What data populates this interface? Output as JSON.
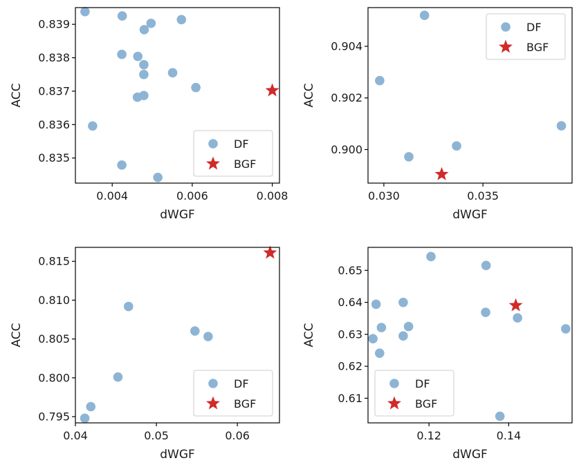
{
  "colors": {
    "df": "#8db4d4",
    "bgf": "#d02a2a"
  },
  "chart_data": [
    {
      "type": "scatter",
      "xlabel": "dWGF",
      "ylabel": "ACC",
      "xlim": [
        0.00308,
        0.00818
      ],
      "ylim": [
        0.83425,
        0.8395
      ],
      "xticks": [
        {
          "v": 0.004,
          "label": "0.004"
        },
        {
          "v": 0.006,
          "label": "0.006"
        },
        {
          "v": 0.008,
          "label": "0.008"
        }
      ],
      "yticks": [
        {
          "v": 0.835,
          "label": "0.835"
        },
        {
          "v": 0.836,
          "label": "0.836"
        },
        {
          "v": 0.837,
          "label": "0.837"
        },
        {
          "v": 0.838,
          "label": "0.838"
        },
        {
          "v": 0.839,
          "label": "0.839"
        }
      ],
      "legend_position": "lower-right",
      "series": [
        {
          "name": "DF",
          "marker": "circle",
          "points": [
            {
              "x": 0.00332,
              "y": 0.83938
            },
            {
              "x": 0.00425,
              "y": 0.83925
            },
            {
              "x": 0.00573,
              "y": 0.83914
            },
            {
              "x": 0.00497,
              "y": 0.83903
            },
            {
              "x": 0.0048,
              "y": 0.83884
            },
            {
              "x": 0.00424,
              "y": 0.8381
            },
            {
              "x": 0.00464,
              "y": 0.83804
            },
            {
              "x": 0.00479,
              "y": 0.83779
            },
            {
              "x": 0.00551,
              "y": 0.83755
            },
            {
              "x": 0.00479,
              "y": 0.8375
            },
            {
              "x": 0.00609,
              "y": 0.83711
            },
            {
              "x": 0.00479,
              "y": 0.83687
            },
            {
              "x": 0.00463,
              "y": 0.83682
            },
            {
              "x": 0.00351,
              "y": 0.83596
            },
            {
              "x": 0.00424,
              "y": 0.83479
            },
            {
              "x": 0.00514,
              "y": 0.83442
            }
          ]
        },
        {
          "name": "BGF",
          "marker": "star",
          "points": [
            {
              "x": 0.008,
              "y": 0.83702
            }
          ]
        }
      ]
    },
    {
      "type": "scatter",
      "xlabel": "dWGF",
      "ylabel": "ACC",
      "xlim": [
        0.0292,
        0.0395
      ],
      "ylim": [
        0.8987,
        0.9055
      ],
      "xticks": [
        {
          "v": 0.03,
          "label": "0.030"
        },
        {
          "v": 0.035,
          "label": "0.035"
        }
      ],
      "yticks": [
        {
          "v": 0.9,
          "label": "0.900"
        },
        {
          "v": 0.902,
          "label": "0.902"
        },
        {
          "v": 0.904,
          "label": "0.904"
        }
      ],
      "legend_position": "upper-right",
      "series": [
        {
          "name": "DF",
          "marker": "circle",
          "points": [
            {
              "x": 0.03205,
              "y": 0.9052
            },
            {
              "x": 0.02979,
              "y": 0.90267
            },
            {
              "x": 0.03896,
              "y": 0.90092
            },
            {
              "x": 0.03367,
              "y": 0.90014
            },
            {
              "x": 0.03126,
              "y": 0.89972
            }
          ]
        },
        {
          "name": "BGF",
          "marker": "star",
          "points": [
            {
              "x": 0.03292,
              "y": 0.89904
            }
          ]
        }
      ]
    },
    {
      "type": "scatter",
      "xlabel": "dWGF",
      "ylabel": "ACC",
      "xlim": [
        0.04,
        0.0652
      ],
      "ylim": [
        0.7942,
        0.8168
      ],
      "xticks": [
        {
          "v": 0.04,
          "label": "0.04"
        },
        {
          "v": 0.05,
          "label": "0.05"
        },
        {
          "v": 0.06,
          "label": "0.06"
        }
      ],
      "yticks": [
        {
          "v": 0.795,
          "label": "0.795"
        },
        {
          "v": 0.8,
          "label": "0.800"
        },
        {
          "v": 0.805,
          "label": "0.805"
        },
        {
          "v": 0.81,
          "label": "0.810"
        },
        {
          "v": 0.815,
          "label": "0.815"
        }
      ],
      "legend_position": "lower-right",
      "series": [
        {
          "name": "DF",
          "marker": "circle",
          "points": [
            {
              "x": 0.04656,
              "y": 0.80919
            },
            {
              "x": 0.05476,
              "y": 0.80603
            },
            {
              "x": 0.05639,
              "y": 0.80532
            },
            {
              "x": 0.04525,
              "y": 0.8001
            },
            {
              "x": 0.0419,
              "y": 0.79629
            },
            {
              "x": 0.04116,
              "y": 0.7948
            }
          ]
        },
        {
          "name": "BGF",
          "marker": "star",
          "points": [
            {
              "x": 0.06404,
              "y": 0.8161
            }
          ]
        }
      ]
    },
    {
      "type": "scatter",
      "xlabel": "dWGF",
      "ylabel": "ACC",
      "xlim": [
        0.1047,
        0.1559
      ],
      "ylim": [
        0.6023,
        0.6572
      ],
      "xticks": [
        {
          "v": 0.12,
          "label": "0.12"
        },
        {
          "v": 0.14,
          "label": "0.14"
        }
      ],
      "yticks": [
        {
          "v": 0.61,
          "label": "0.61"
        },
        {
          "v": 0.62,
          "label": "0.62"
        },
        {
          "v": 0.63,
          "label": "0.63"
        },
        {
          "v": 0.64,
          "label": "0.64"
        },
        {
          "v": 0.65,
          "label": "0.65"
        }
      ],
      "legend_position": "lower-left",
      "series": [
        {
          "name": "DF",
          "marker": "circle",
          "points": [
            {
              "x": 0.12049,
              "y": 0.65432
            },
            {
              "x": 0.13432,
              "y": 0.65153
            },
            {
              "x": 0.11353,
              "y": 0.63998
            },
            {
              "x": 0.10672,
              "y": 0.63941
            },
            {
              "x": 0.13421,
              "y": 0.63687
            },
            {
              "x": 0.14221,
              "y": 0.63513
            },
            {
              "x": 0.11487,
              "y": 0.63243
            },
            {
              "x": 0.10806,
              "y": 0.63211
            },
            {
              "x": 0.15431,
              "y": 0.63171
            },
            {
              "x": 0.11353,
              "y": 0.62949
            },
            {
              "x": 0.10593,
              "y": 0.62862
            },
            {
              "x": 0.10761,
              "y": 0.6241
            },
            {
              "x": 0.13779,
              "y": 0.60437
            }
          ]
        },
        {
          "name": "BGF",
          "marker": "star",
          "points": [
            {
              "x": 0.14177,
              "y": 0.63904
            }
          ]
        }
      ]
    }
  ]
}
